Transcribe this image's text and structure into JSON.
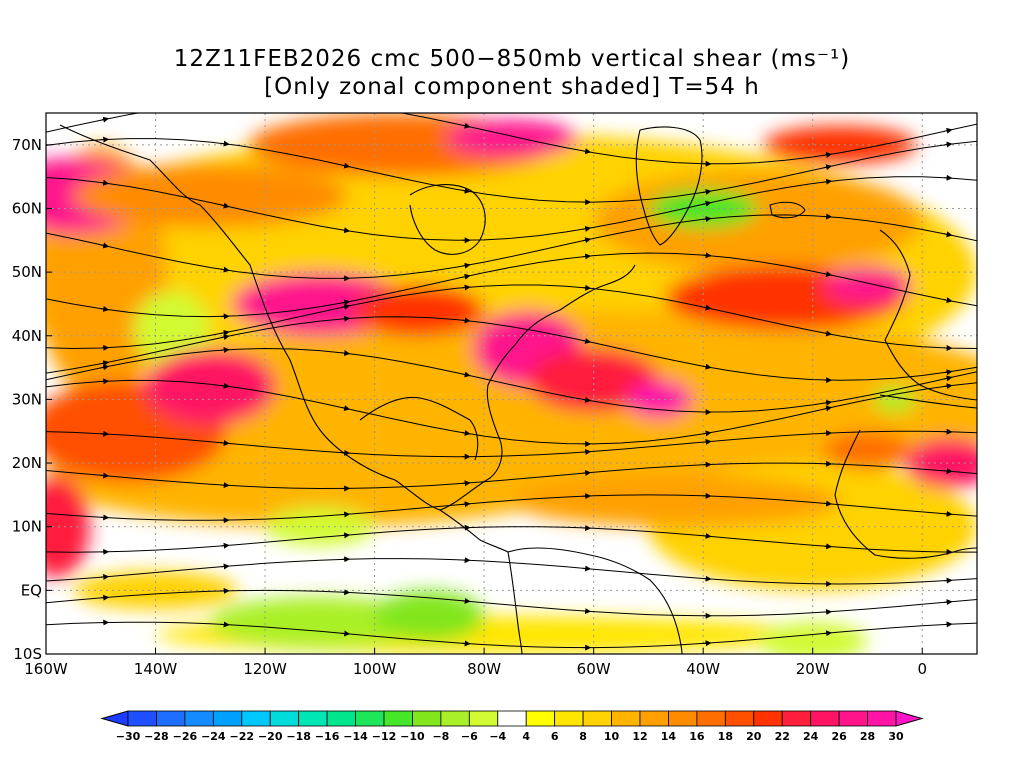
{
  "title": {
    "line1": "12Z11FEB2026 cmc 500−850mb vertical shear (ms⁻¹)",
    "line2": "[Only zonal component shaded] T=54 h"
  },
  "map": {
    "lon_range": [
      -160,
      10
    ],
    "lat_range": [
      -10,
      75
    ],
    "lat_labels": [
      {
        "lat": 70,
        "text": "70N"
      },
      {
        "lat": 60,
        "text": "60N"
      },
      {
        "lat": 50,
        "text": "50N"
      },
      {
        "lat": 40,
        "text": "40N"
      },
      {
        "lat": 30,
        "text": "30N"
      },
      {
        "lat": 20,
        "text": "20N"
      },
      {
        "lat": 10,
        "text": "10N"
      },
      {
        "lat": 0,
        "text": "EQ"
      },
      {
        "lat": -10,
        "text": "10S"
      }
    ],
    "lon_labels": [
      {
        "lon": -160,
        "text": "160W"
      },
      {
        "lon": -140,
        "text": "140W"
      },
      {
        "lon": -120,
        "text": "120W"
      },
      {
        "lon": -100,
        "text": "100W"
      },
      {
        "lon": -80,
        "text": "80W"
      },
      {
        "lon": -60,
        "text": "60W"
      },
      {
        "lon": -40,
        "text": "40W"
      },
      {
        "lon": -20,
        "text": "20W"
      },
      {
        "lon": 0,
        "text": "0"
      }
    ],
    "shear_jets": [
      {
        "lon": -155,
        "lat": 62,
        "rx": 14,
        "ry": 6,
        "value": 26
      },
      {
        "lon": -130,
        "lat": 62,
        "rx": 25,
        "ry": 5,
        "value": 14
      },
      {
        "lon": -95,
        "lat": 70,
        "rx": 28,
        "ry": 5,
        "value": 16
      },
      {
        "lon": -75,
        "lat": 71,
        "rx": 12,
        "ry": 3,
        "value": 26
      },
      {
        "lon": -15,
        "lat": 70,
        "rx": 14,
        "ry": 3,
        "value": 20
      },
      {
        "lon": -145,
        "lat": 25,
        "rx": 18,
        "ry": 8,
        "value": 18
      },
      {
        "lon": -130,
        "lat": 32,
        "rx": 12,
        "ry": 6,
        "value": 24
      },
      {
        "lon": -110,
        "lat": 45,
        "rx": 16,
        "ry": 5,
        "value": 26
      },
      {
        "lon": -92,
        "lat": 44,
        "rx": 12,
        "ry": 4,
        "value": 20
      },
      {
        "lon": -72,
        "lat": 38,
        "rx": 10,
        "ry": 6,
        "value": 26
      },
      {
        "lon": -60,
        "lat": 33,
        "rx": 12,
        "ry": 5,
        "value": 22
      },
      {
        "lon": -48,
        "lat": 30,
        "rx": 6,
        "ry": 3,
        "value": 28
      },
      {
        "lon": -25,
        "lat": 46,
        "rx": 22,
        "ry": 5,
        "value": 20
      },
      {
        "lon": -10,
        "lat": 48,
        "rx": 8,
        "ry": 3,
        "value": 26
      },
      {
        "lon": -158,
        "lat": 10,
        "rx": 6,
        "ry": 8,
        "value": 22
      },
      {
        "lon": 5,
        "lat": 20,
        "rx": 8,
        "ry": 4,
        "value": 24
      },
      {
        "lon": -10,
        "lat": 22,
        "rx": 8,
        "ry": 3,
        "value": 16
      },
      {
        "lon": -45,
        "lat": 14,
        "rx": 30,
        "ry": 4,
        "value": 12
      },
      {
        "lon": -140,
        "lat": 0,
        "rx": 15,
        "ry": 3,
        "value": 8
      }
    ],
    "neg_regions": [
      {
        "lon": -137,
        "lat": 41,
        "rx": 7,
        "ry": 6,
        "value": -6
      },
      {
        "lon": -40,
        "lat": 60,
        "rx": 10,
        "ry": 3,
        "value": -12
      },
      {
        "lon": -110,
        "lat": -5,
        "rx": 20,
        "ry": 4,
        "value": -8
      },
      {
        "lon": -90,
        "lat": -4,
        "rx": 10,
        "ry": 4,
        "value": -10
      },
      {
        "lon": -110,
        "lat": 10,
        "rx": 10,
        "ry": 3,
        "value": -6
      },
      {
        "lon": -20,
        "lat": -8,
        "rx": 10,
        "ry": 3,
        "value": -6
      },
      {
        "lon": -5,
        "lat": 30,
        "rx": 4,
        "ry": 2,
        "value": -8
      }
    ]
  },
  "colorbar": {
    "levels": [
      -30,
      -28,
      -26,
      -24,
      -22,
      -20,
      -18,
      -16,
      -14,
      -12,
      -10,
      -8,
      -6,
      -4,
      4,
      6,
      8,
      10,
      12,
      14,
      16,
      18,
      20,
      22,
      24,
      26,
      28,
      30
    ],
    "labels": [
      "−30",
      "−28",
      "−26",
      "−24",
      "−22",
      "−20",
      "−18",
      "−16",
      "−14",
      "−12",
      "−10",
      "−8",
      "−6",
      "−4",
      "4",
      "6",
      "8",
      "10",
      "12",
      "14",
      "16",
      "18",
      "20",
      "22",
      "24",
      "26",
      "28",
      "30"
    ],
    "colors": [
      "#1e3cff",
      "#1e50ff",
      "#1e6eff",
      "#148cff",
      "#00a0ff",
      "#00c8ff",
      "#00dcdc",
      "#00e6b4",
      "#00e68c",
      "#1ee65a",
      "#46e628",
      "#82e61e",
      "#aaf028",
      "#d2fa32",
      "#ffffff",
      "#ffff00",
      "#ffe600",
      "#ffd200",
      "#ffb400",
      "#ffa000",
      "#ff8c00",
      "#ff6e00",
      "#ff5000",
      "#ff3200",
      "#ff1e3c",
      "#ff1464",
      "#ff148c",
      "#ff14a5",
      "#ff14c8"
    ]
  }
}
